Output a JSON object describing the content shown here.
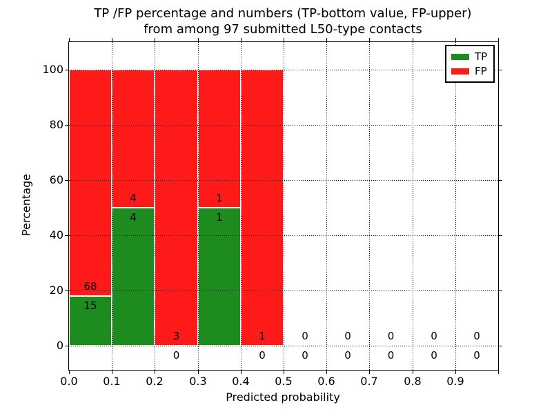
{
  "figure": {
    "background": "#ffffff"
  },
  "chart_data": {
    "type": "bar",
    "stacked": true,
    "title_line1": "TP /FP percentage and numbers (TP-bottom value, FP-upper)",
    "title_line2": "from among 97 submitted L50-type contacts",
    "xlabel": "Predicted probability",
    "ylabel": "Percentage",
    "total_contacts": 97,
    "grid": "dotted",
    "xlim": [
      0.0,
      1.0
    ],
    "ylim": [
      -8.75,
      110
    ],
    "bin_width": 0.1,
    "bin_starts": [
      0.0,
      0.1,
      0.2,
      0.3,
      0.4,
      0.5,
      0.6,
      0.7,
      0.8,
      0.9
    ],
    "x_tick_labels": [
      "0.0",
      "0.1",
      "0.2",
      "0.3",
      "0.4",
      "0.5",
      "0.6",
      "0.7",
      "0.8",
      "0.9"
    ],
    "y_tick_values": [
      0,
      20,
      40,
      60,
      80,
      100
    ],
    "y_tick_labels": [
      "0",
      "20",
      "40",
      "60",
      "80",
      "100"
    ],
    "series": [
      {
        "name": "TP",
        "color": "#1e8b1e",
        "counts": [
          15,
          4,
          0,
          1,
          0,
          0,
          0,
          0,
          0,
          0
        ],
        "percentages": [
          18.07,
          50,
          0,
          50,
          0,
          0,
          0,
          0,
          0,
          0
        ]
      },
      {
        "name": "FP",
        "color": "#ff1a1a",
        "counts": [
          68,
          4,
          3,
          1,
          1,
          0,
          0,
          0,
          0,
          0
        ],
        "percentages": [
          81.93,
          50,
          100,
          50,
          100,
          0,
          0,
          0,
          0,
          0
        ]
      }
    ],
    "legend": {
      "position": "upper right",
      "entries": [
        {
          "label": "TP",
          "color": "#1e8b1e"
        },
        {
          "label": "FP",
          "color": "#ff1a1a"
        }
      ]
    }
  }
}
